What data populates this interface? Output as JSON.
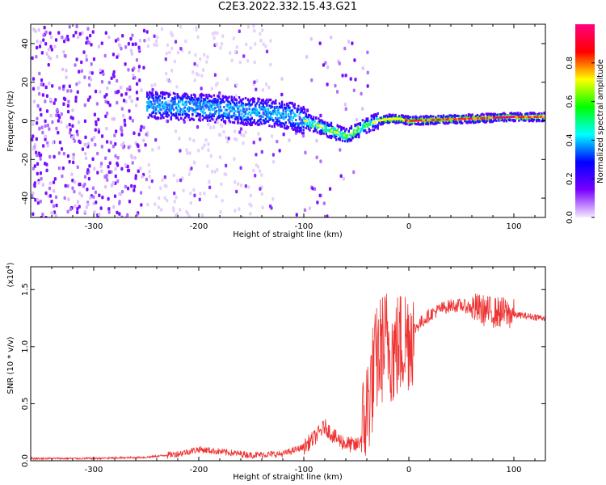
{
  "title": "C2E3.2022.332.15.43.G21",
  "chart_data": [
    {
      "type": "heatmap",
      "title": "C2E3.2022.332.15.43.G21",
      "xlabel": "Height of straight line (km)",
      "ylabel": "Frequency (Hz)",
      "xlim": [
        -360,
        130
      ],
      "ylim": [
        -50,
        50
      ],
      "xticks": [
        -300,
        -200,
        -100,
        0,
        100
      ],
      "yticks": [
        -40,
        -20,
        0,
        20,
        40
      ],
      "colorbar": {
        "label": "Normalized spectral amplitude",
        "range": [
          0,
          1
        ],
        "ticks": [
          "0.0",
          "0.2",
          "0.4",
          "0.6",
          "0.8"
        ],
        "colors": [
          "#f5eafd",
          "#7a00ff",
          "#0000ff",
          "#00ffff",
          "#00ff00",
          "#ffff00",
          "#ff0000",
          "#ff0080"
        ]
      },
      "ridge": {
        "x": [
          -240,
          -200,
          -160,
          -130,
          -110,
          -90,
          -70,
          -60,
          -50,
          -40,
          -30,
          -20,
          -10,
          0,
          50,
          100,
          130
        ],
        "frequency": [
          8,
          7,
          5,
          4,
          2,
          -2,
          -6,
          -8,
          -5,
          -2,
          0,
          1,
          1,
          0,
          1,
          2,
          2
        ]
      }
    },
    {
      "type": "line",
      "xlabel": "Height of straight line (km)",
      "ylabel": "SNR (10 * v/v)",
      "y_multiplier": "(x10",
      "y_multiplier_exp": "4",
      "xlim": [
        -360,
        130
      ],
      "ylim": [
        0,
        1.7
      ],
      "xticks": [
        -300,
        -200,
        -100,
        0,
        100
      ],
      "yticks": [
        "0.0",
        "0.5",
        "1.0",
        "1.5"
      ],
      "series": [
        {
          "color": "#ee3333",
          "x": [
            -360,
            -300,
            -250,
            -220,
            -200,
            -180,
            -150,
            -120,
            -100,
            -90,
            -80,
            -70,
            -60,
            -50,
            -45,
            -40,
            -35,
            -30,
            -25,
            -20,
            -15,
            -10,
            -5,
            0,
            10,
            20,
            30,
            40,
            50,
            60,
            70,
            80,
            90,
            100,
            110,
            120,
            130
          ],
          "values": [
            0.02,
            0.02,
            0.03,
            0.06,
            0.1,
            0.08,
            0.05,
            0.06,
            0.12,
            0.2,
            0.3,
            0.2,
            0.15,
            0.13,
            0.2,
            0.45,
            0.7,
            0.9,
            1.0,
            1.05,
            0.95,
            1.0,
            1.05,
            1.1,
            1.2,
            1.28,
            1.33,
            1.36,
            1.36,
            1.34,
            1.32,
            1.3,
            1.3,
            1.28,
            1.27,
            1.26,
            1.25
          ]
        }
      ]
    }
  ]
}
